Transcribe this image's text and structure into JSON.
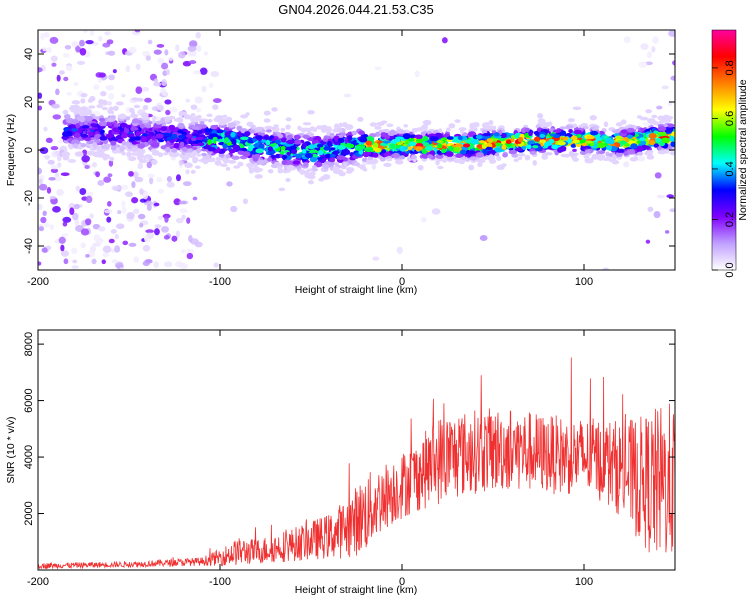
{
  "title": "GN04.2026.044.21.53.C35",
  "chart_data": [
    {
      "type": "heatmap",
      "name": "spectrogram",
      "xlabel": "Height of straight line (km)",
      "ylabel": "Frequency (Hz)",
      "xlim": [
        -200,
        150
      ],
      "ylim": [
        -50,
        50
      ],
      "xticks": [
        -200,
        -100,
        0,
        100
      ],
      "yticks": [
        -40,
        -20,
        0,
        20,
        40
      ],
      "ridge": {
        "x": [
          -190,
          -180,
          -170,
          -160,
          -150,
          -140,
          -130,
          -120,
          -110,
          -100,
          -90,
          -80,
          -70,
          -60,
          -50,
          -40,
          -30,
          -20,
          -10,
          0,
          10,
          20,
          30,
          40,
          50,
          60,
          70,
          80,
          90,
          100,
          110,
          120,
          130,
          140,
          150
        ],
        "freq": [
          8,
          8,
          8,
          7,
          7,
          6,
          6,
          5,
          5,
          4,
          3,
          2,
          1,
          0,
          -1,
          0,
          1,
          2,
          2,
          2,
          2,
          2,
          2,
          2,
          3,
          3,
          4,
          4,
          4,
          4,
          3,
          3,
          4,
          5,
          6
        ]
      },
      "colorbar": {
        "label": "Normalized spectral amplitude",
        "range": [
          0,
          0.95
        ],
        "ticks": [
          "0.0",
          "0.2",
          "0.4",
          "0.6",
          "0.8"
        ],
        "colors": [
          "#ffffff",
          "#c0a0ff",
          "#8000ff",
          "#0000ff",
          "#00ffff",
          "#00ff00",
          "#ffff00",
          "#ff8000",
          "#ff0000",
          "#ff00a0"
        ]
      }
    },
    {
      "type": "line",
      "name": "snr",
      "xlabel": "Height of straight line (km)",
      "ylabel": "SNR (10 * v/v)",
      "xlim": [
        -200,
        150
      ],
      "ylim": [
        0,
        8500
      ],
      "xticks": [
        -200,
        -100,
        0,
        100
      ],
      "yticks": [
        2000,
        4000,
        6000,
        8000
      ],
      "color": "#f03030",
      "envelope": {
        "x": [
          -200,
          -150,
          -110,
          -100,
          -90,
          -80,
          -60,
          -40,
          -30,
          -20,
          -10,
          0,
          10,
          20,
          40,
          60,
          80,
          100,
          110,
          120,
          130,
          140,
          150
        ],
        "mean": [
          150,
          200,
          300,
          450,
          650,
          650,
          900,
          1200,
          1500,
          2000,
          2600,
          3000,
          3400,
          3900,
          4200,
          4300,
          4100,
          4000,
          3900,
          3600,
          3200,
          3000,
          3200
        ],
        "spread": [
          100,
          100,
          150,
          300,
          500,
          450,
          600,
          800,
          1100,
          1400,
          1200,
          1200,
          1300,
          1600,
          1500,
          1500,
          1400,
          1400,
          1500,
          1700,
          2200,
          2800,
          2800
        ]
      }
    }
  ]
}
